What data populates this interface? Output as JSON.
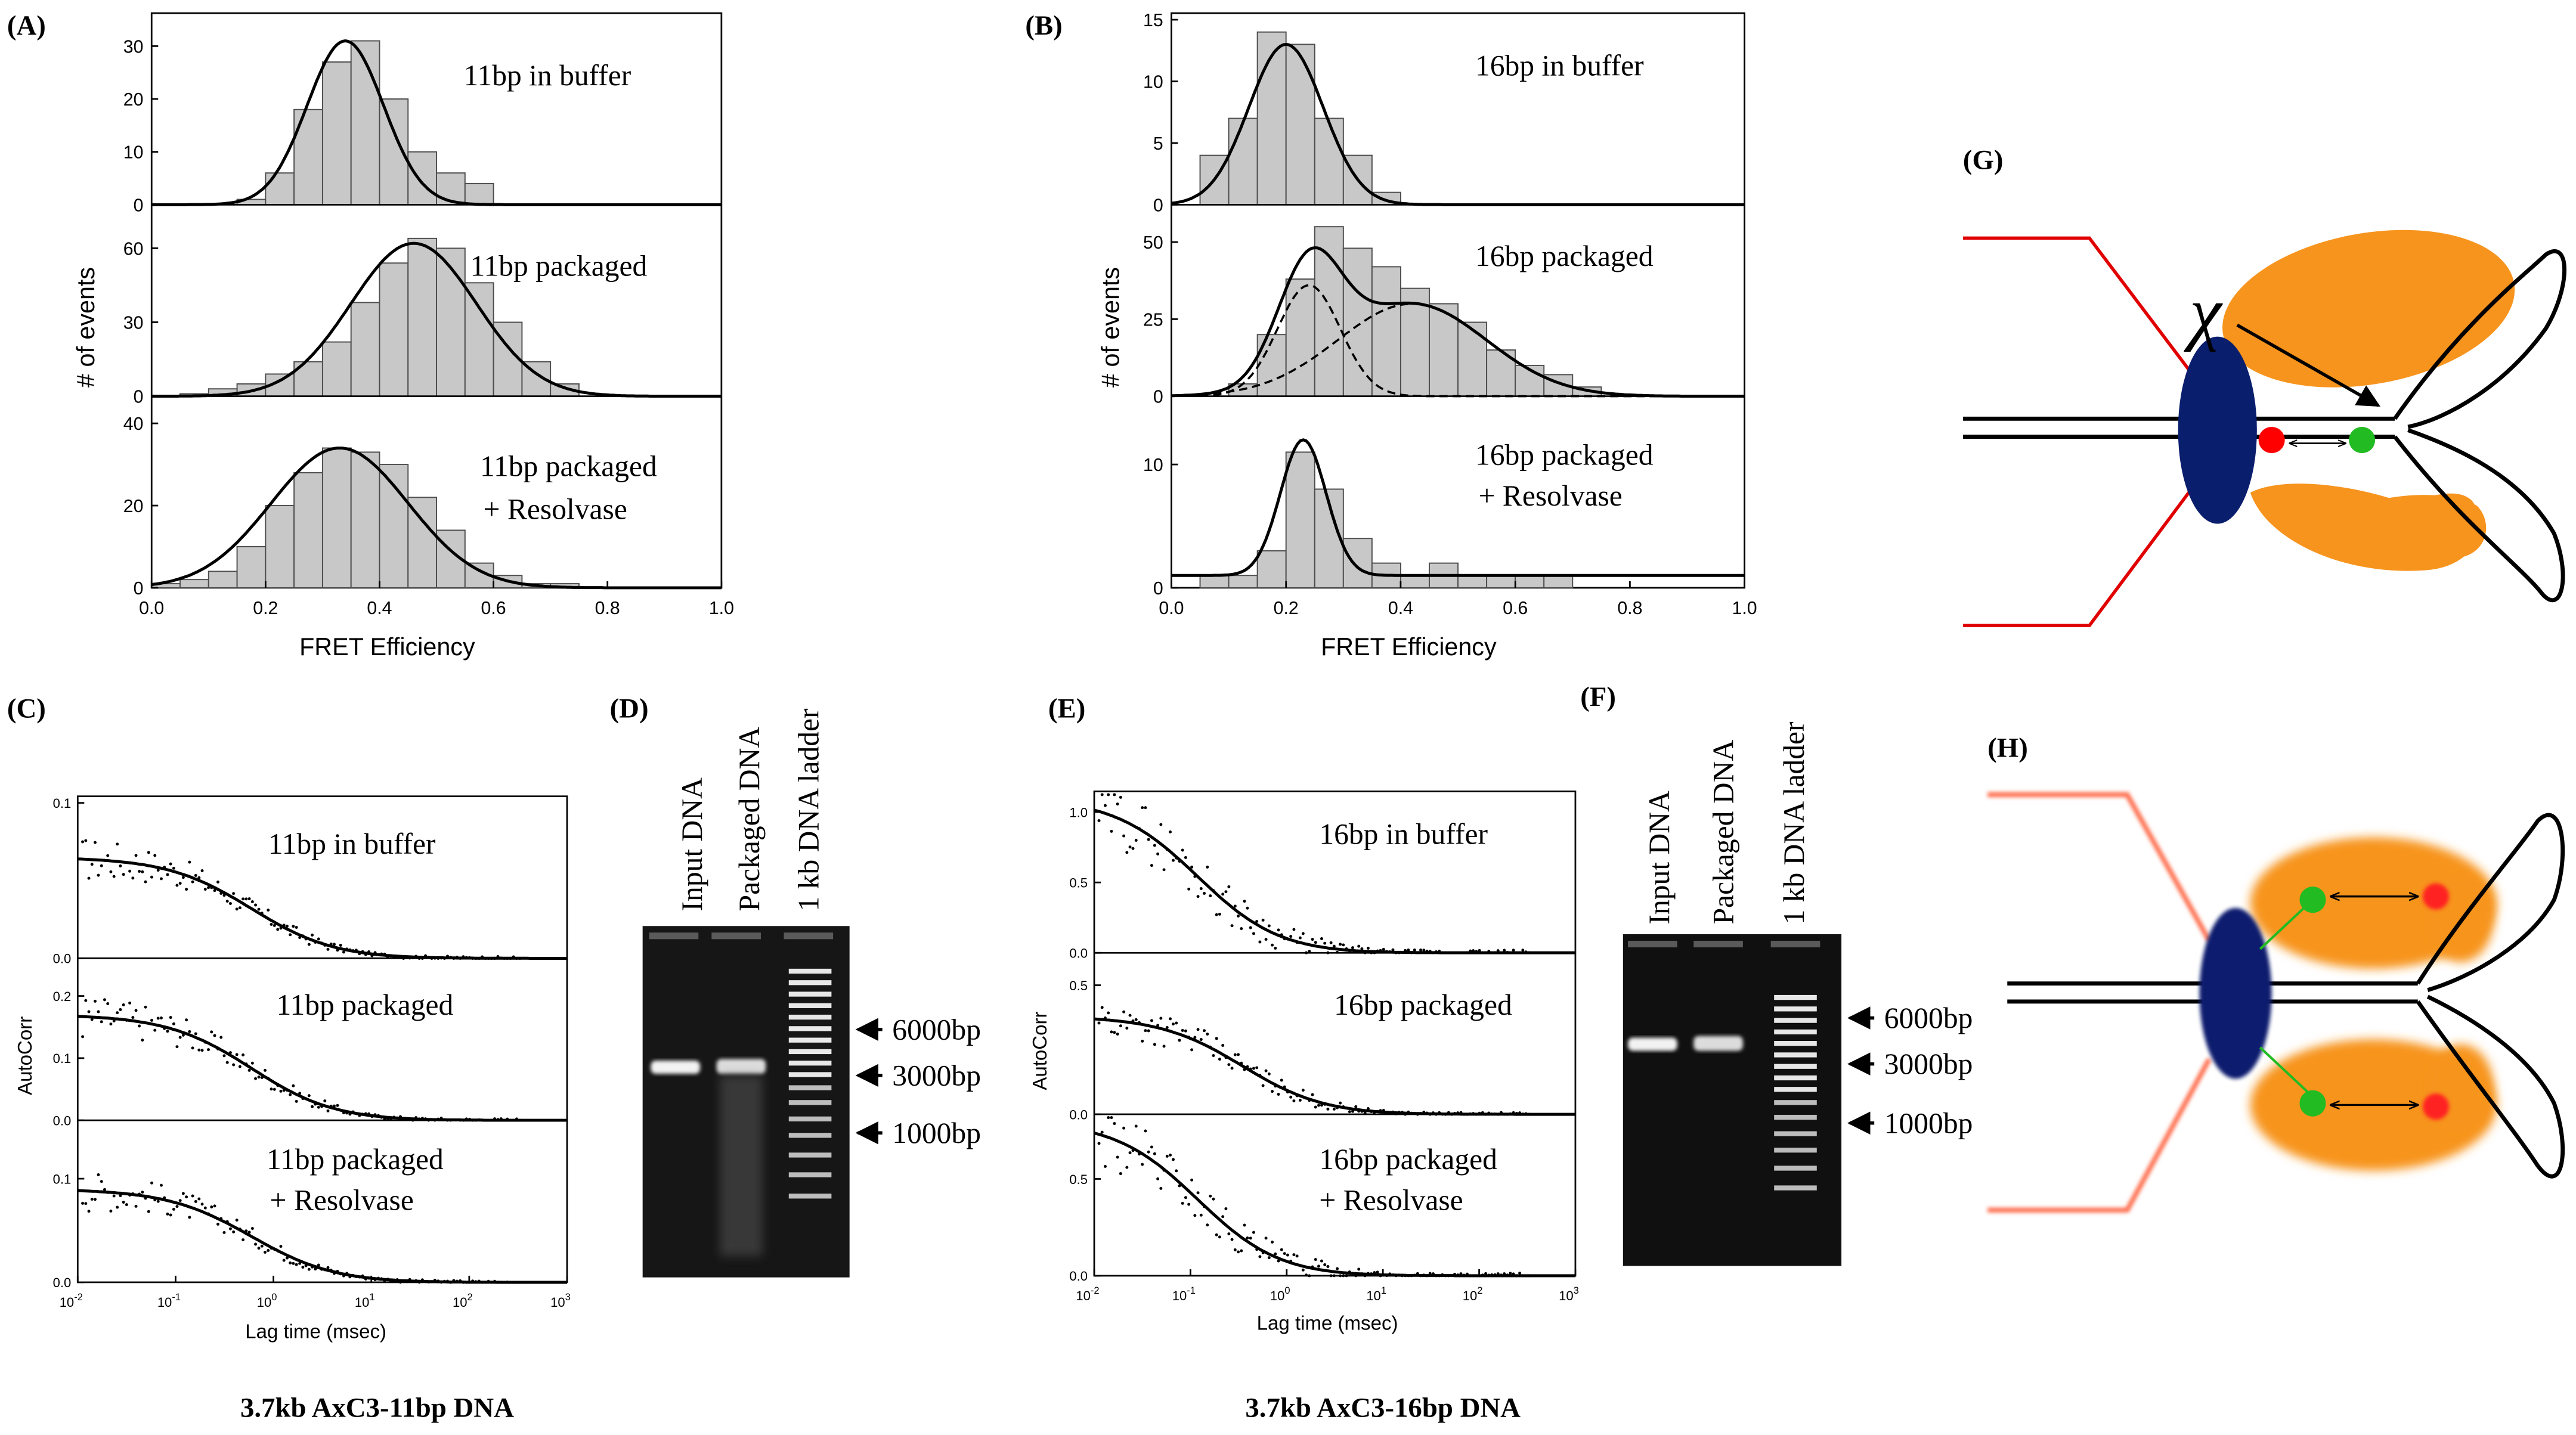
{
  "panels": {
    "A": {
      "label": "(A)",
      "ylabel": "# of events",
      "xlabel": "FRET Efficiency",
      "subplots": [
        {
          "label": "11bp in buffer"
        },
        {
          "label": "11bp packaged"
        },
        {
          "label": "11bp packaged",
          "label2": "+ Resolvase"
        }
      ]
    },
    "B": {
      "label": "(B)",
      "ylabel": "# of events",
      "xlabel": "FRET Efficiency",
      "subplots": [
        {
          "label": "16bp in buffer"
        },
        {
          "label": "16bp packaged"
        },
        {
          "label": "16bp packaged",
          "label2": "+ Resolvase"
        }
      ]
    },
    "C": {
      "label": "(C)",
      "ylabel": "AutoCorr",
      "xlabel": "Lag time (msec)",
      "subplots": [
        {
          "label": "11bp in buffer"
        },
        {
          "label": "11bp packaged"
        },
        {
          "label": "11bp packaged",
          "label2": "+ Resolvase"
        }
      ]
    },
    "D": {
      "label": "(D)",
      "lanes": [
        "Input DNA",
        "Packaged DNA",
        "1 kb DNA ladder"
      ],
      "markers": [
        "6000bp",
        "3000bp",
        "1000bp"
      ]
    },
    "E": {
      "label": "(E)",
      "ylabel": "AutoCorr",
      "xlabel": "Lag time (msec)",
      "subplots": [
        {
          "label": "16bp in buffer"
        },
        {
          "label": "16bp packaged"
        },
        {
          "label": "16bp packaged",
          "label2": "+ Resolvase"
        }
      ]
    },
    "F": {
      "label": "(F)",
      "lanes": [
        "Input DNA",
        "Packaged DNA",
        "1 kb DNA ladder"
      ],
      "markers": [
        "6000bp",
        "3000bp",
        "1000bp"
      ]
    },
    "G": {
      "label": "(G)",
      "symbol": "χ"
    },
    "H": {
      "label": "(H)"
    }
  },
  "captions": {
    "left": "3.7kb  AxC3-11bp DNA",
    "right": "3.7kb  AxC3-16bp DNA"
  },
  "colors": {
    "bar_fill": "#c8c8c8",
    "capsid_line": "#e00000",
    "protein": "#f7941d",
    "portal": "#0a1e6e",
    "donor": "#22bb22",
    "acceptor": "#ff0000"
  },
  "chart_data": [
    {
      "id": "A",
      "type": "bar",
      "title": "",
      "xlabel": "FRET Efficiency",
      "ylabel": "# of events",
      "xlim": [
        0.0,
        1.0
      ],
      "xticks": [
        "0.0",
        "0.2",
        "0.4",
        "0.6",
        "0.8",
        "1.0"
      ],
      "subplots": [
        {
          "label": "11bp in buffer",
          "ylim": [
            0,
            35
          ],
          "yticks": [
            "0",
            "10",
            "20",
            "30"
          ],
          "bins": [
            0.15,
            0.2,
            0.25,
            0.3,
            0.35,
            0.4,
            0.45,
            0.5,
            0.55
          ],
          "values": [
            1,
            6,
            18,
            27,
            31,
            20,
            10,
            6,
            4
          ],
          "fit": {
            "type": "gaussian",
            "components": [
              {
                "amp": 31,
                "mu": 0.34,
                "sigma": 0.067
              }
            ]
          }
        },
        {
          "label": "11bp packaged",
          "ylim": [
            0,
            75
          ],
          "yticks": [
            "0",
            "30",
            "60"
          ],
          "bins": [
            0.05,
            0.1,
            0.15,
            0.2,
            0.25,
            0.3,
            0.35,
            0.4,
            0.45,
            0.5,
            0.55,
            0.6,
            0.65,
            0.7
          ],
          "values": [
            1,
            3,
            5,
            9,
            14,
            22,
            38,
            54,
            64,
            60,
            46,
            30,
            14,
            5
          ],
          "fit": {
            "type": "gaussian",
            "components": [
              {
                "amp": 62,
                "mu": 0.46,
                "sigma": 0.11
              }
            ]
          }
        },
        {
          "label": "11bp packaged + Resolvase",
          "ylim": [
            0,
            45
          ],
          "yticks": [
            "0",
            "20",
            "40"
          ],
          "bins": [
            0.0,
            0.05,
            0.1,
            0.15,
            0.2,
            0.25,
            0.3,
            0.35,
            0.4,
            0.45,
            0.5,
            0.55,
            0.6,
            0.65,
            0.7
          ],
          "values": [
            1,
            2,
            4,
            10,
            20,
            28,
            34,
            33,
            30,
            22,
            14,
            6,
            3,
            1,
            1
          ],
          "fit": {
            "type": "gaussian",
            "components": [
              {
                "amp": 34,
                "mu": 0.33,
                "sigma": 0.12
              }
            ]
          }
        }
      ]
    },
    {
      "id": "B",
      "type": "bar",
      "title": "",
      "xlabel": "FRET Efficiency",
      "ylabel": "# of events",
      "xlim": [
        0.0,
        1.0
      ],
      "xticks": [
        "0.0",
        "0.2",
        "0.4",
        "0.6",
        "0.8",
        "1.0"
      ],
      "subplots": [
        {
          "label": "16bp in buffer",
          "ylim": [
            0,
            15
          ],
          "yticks": [
            "0",
            "5",
            "10",
            "15"
          ],
          "bins": [
            0.05,
            0.1,
            0.15,
            0.2,
            0.25,
            0.3,
            0.35
          ],
          "values": [
            4,
            7,
            14,
            13,
            7,
            4,
            1
          ],
          "fit": {
            "type": "gaussian",
            "components": [
              {
                "amp": 13,
                "mu": 0.2,
                "sigma": 0.065
              }
            ]
          }
        },
        {
          "label": "16bp packaged",
          "ylim": [
            0,
            60
          ],
          "yticks": [
            "0",
            "25",
            "50"
          ],
          "bins": [
            0.1,
            0.15,
            0.2,
            0.25,
            0.3,
            0.35,
            0.4,
            0.45,
            0.5,
            0.55,
            0.6,
            0.65,
            0.7
          ],
          "values": [
            4,
            20,
            38,
            55,
            48,
            42,
            35,
            30,
            24,
            15,
            10,
            7,
            3
          ],
          "fit": {
            "type": "gaussian-sum",
            "components": [
              {
                "amp": 36,
                "mu": 0.24,
                "sigma": 0.055
              },
              {
                "amp": 30,
                "mu": 0.42,
                "sigma": 0.13
              }
            ]
          }
        },
        {
          "label": "16bp packaged + Resolvase",
          "ylim": [
            0,
            15
          ],
          "yticks": [
            "0",
            "10"
          ],
          "bins": [
            0.05,
            0.1,
            0.15,
            0.2,
            0.25,
            0.3,
            0.35,
            0.4,
            0.45,
            0.5,
            0.55,
            0.6,
            0.65
          ],
          "values": [
            1,
            1,
            3,
            11,
            8,
            4,
            2,
            1,
            2,
            1,
            1,
            1,
            1
          ],
          "fit": {
            "type": "gaussian",
            "components": [
              {
                "amp": 11,
                "mu": 0.23,
                "sigma": 0.04
              }
            ],
            "baseline": 1
          }
        }
      ]
    },
    {
      "id": "C",
      "type": "scatter",
      "title": "",
      "xlabel": "Lag time (msec)",
      "ylabel": "AutoCorr",
      "xscale": "log",
      "xlim": [
        0.01,
        1000
      ],
      "xticks": [
        "10^-2",
        "10^-1",
        "10^0",
        "10^1",
        "10^2",
        "10^3"
      ],
      "subplots": [
        {
          "label": "11bp in buffer",
          "ylim": [
            0,
            0.1
          ],
          "yticks": [
            "0.0",
            "0.1"
          ],
          "fit": {
            "G0": 0.065,
            "tau": 0.6
          }
        },
        {
          "label": "11bp packaged",
          "ylim": [
            0,
            0.25
          ],
          "yticks": [
            "0.0",
            "0.1",
            "0.2"
          ],
          "fit": {
            "G0": 0.17,
            "tau": 0.6
          }
        },
        {
          "label": "11bp packaged + Resolvase",
          "ylim": [
            0,
            0.15
          ],
          "yticks": [
            "0.0",
            "0.1"
          ],
          "fit": {
            "G0": 0.09,
            "tau": 0.6
          }
        }
      ]
    },
    {
      "id": "E",
      "type": "scatter",
      "title": "",
      "xlabel": "Lag time (msec)",
      "ylabel": "AutoCorr",
      "xscale": "log",
      "xlim": [
        0.01,
        1000
      ],
      "xticks": [
        "10^-2",
        "10^-1",
        "10^0",
        "10^1",
        "10^2",
        "10^3"
      ],
      "subplots": [
        {
          "label": "16bp in buffer",
          "ylim": [
            0,
            1.1
          ],
          "yticks": [
            "0.0",
            "0.5",
            "1.0"
          ],
          "fit": {
            "G0": 1.1,
            "tau": 0.12
          }
        },
        {
          "label": "16bp packaged",
          "ylim": [
            0,
            0.6
          ],
          "yticks": [
            "0.0",
            "0.5"
          ],
          "fit": {
            "G0": 0.38,
            "tau": 0.35
          }
        },
        {
          "label": "16bp packaged + Resolvase",
          "ylim": [
            0,
            0.8
          ],
          "yticks": [
            "0.0",
            "0.5"
          ],
          "fit": {
            "G0": 0.8,
            "tau": 0.12
          }
        }
      ]
    }
  ]
}
